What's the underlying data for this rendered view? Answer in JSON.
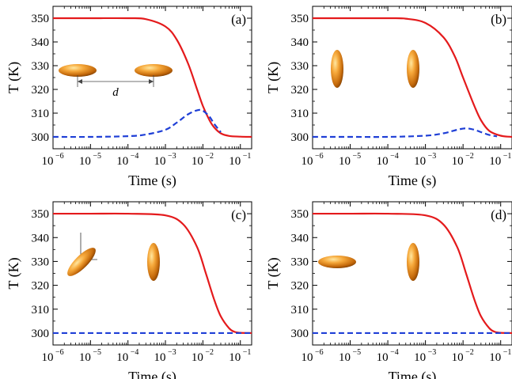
{
  "chart_data": [
    {
      "type": "line",
      "panel_label": "(a)",
      "xlabel": "Time (s)",
      "ylabel": "T (K)",
      "xscale": "log",
      "xlim": [
        1e-06,
        0.2
      ],
      "ylim": [
        295,
        355
      ],
      "xticks": [
        {
          "base": "10",
          "exp": "−6"
        },
        {
          "base": "10",
          "exp": "−5"
        },
        {
          "base": "10",
          "exp": "−4"
        },
        {
          "base": "10",
          "exp": "−3"
        },
        {
          "base": "10",
          "exp": "−2"
        },
        {
          "base": "10",
          "exp": "−1"
        }
      ],
      "yticks": [
        "300",
        "310",
        "320",
        "330",
        "340",
        "350"
      ],
      "series": [
        {
          "color": "#e41a1c",
          "style": "solid",
          "x": [
            1e-06,
            1e-05,
            0.0001,
            0.0003,
            0.001,
            0.002,
            0.004,
            0.007,
            0.01,
            0.015,
            0.02,
            0.03,
            0.05,
            0.1,
            0.2
          ],
          "y": [
            350,
            350,
            350,
            349.6,
            346.5,
            341,
            331,
            320,
            313,
            307,
            304,
            301.5,
            300.4,
            300.1,
            300
          ]
        },
        {
          "color": "#1f3fd6",
          "style": "dashed",
          "x": [
            1e-06,
            1e-05,
            0.0001,
            0.0003,
            0.001,
            0.002,
            0.004,
            0.007,
            0.01,
            0.015,
            0.02,
            0.03
          ],
          "y": [
            300,
            300,
            300.3,
            301,
            303,
            306,
            309.5,
            311.2,
            311,
            308.5,
            305.5,
            302
          ]
        }
      ],
      "annotation": "d",
      "particles": [
        "horizontal",
        "horizontal"
      ]
    },
    {
      "type": "line",
      "panel_label": "(b)",
      "xlabel": "Time (s)",
      "ylabel": "T (K)",
      "xscale": "log",
      "xlim": [
        1e-06,
        0.2
      ],
      "ylim": [
        295,
        355
      ],
      "xticks": [
        {
          "base": "10",
          "exp": "−6"
        },
        {
          "base": "10",
          "exp": "−5"
        },
        {
          "base": "10",
          "exp": "−4"
        },
        {
          "base": "10",
          "exp": "−3"
        },
        {
          "base": "10",
          "exp": "−2"
        },
        {
          "base": "10",
          "exp": "−1"
        }
      ],
      "yticks": [
        "300",
        "310",
        "320",
        "330",
        "340",
        "350"
      ],
      "series": [
        {
          "color": "#e41a1c",
          "style": "solid",
          "x": [
            1e-06,
            1e-05,
            0.0001,
            0.0003,
            0.001,
            0.003,
            0.006,
            0.01,
            0.02,
            0.03,
            0.05,
            0.1,
            0.2
          ],
          "y": [
            350,
            350,
            350,
            349.8,
            348,
            342,
            334,
            325,
            313,
            307,
            302.5,
            300.5,
            300
          ]
        },
        {
          "color": "#1f3fd6",
          "style": "dashed",
          "x": [
            1e-06,
            1e-05,
            0.0001,
            0.001,
            0.003,
            0.007,
            0.012,
            0.02,
            0.03,
            0.05,
            0.08
          ],
          "y": [
            300,
            300,
            300,
            300.5,
            301.5,
            303,
            303.6,
            303,
            302,
            300.8,
            300.2
          ]
        }
      ],
      "particles": [
        "vertical",
        "vertical"
      ]
    },
    {
      "type": "line",
      "panel_label": "(c)",
      "xlabel": "Time (s)",
      "ylabel": "T (K)",
      "xscale": "log",
      "xlim": [
        1e-06,
        0.2
      ],
      "ylim": [
        295,
        355
      ],
      "xticks": [
        {
          "base": "10",
          "exp": "−6"
        },
        {
          "base": "10",
          "exp": "−5"
        },
        {
          "base": "10",
          "exp": "−4"
        },
        {
          "base": "10",
          "exp": "−3"
        },
        {
          "base": "10",
          "exp": "−2"
        },
        {
          "base": "10",
          "exp": "−1"
        }
      ],
      "yticks": [
        "300",
        "310",
        "320",
        "330",
        "340",
        "350"
      ],
      "series": [
        {
          "color": "#e41a1c",
          "style": "solid",
          "x": [
            1e-06,
            1e-05,
            0.0001,
            0.001,
            0.003,
            0.007,
            0.012,
            0.02,
            0.03,
            0.05,
            0.07,
            0.1,
            0.2
          ],
          "y": [
            350,
            350,
            350,
            349.3,
            345.5,
            336,
            325,
            314,
            307,
            302,
            300.5,
            300.1,
            300
          ]
        },
        {
          "color": "#1f3fd6",
          "style": "dashed",
          "x": [
            1e-06,
            0.0001,
            0.001,
            0.01,
            0.1,
            0.2
          ],
          "y": [
            300,
            300,
            300,
            300,
            300,
            300
          ]
        }
      ],
      "particles": [
        "tilted",
        "vertical"
      ]
    },
    {
      "type": "line",
      "panel_label": "(d)",
      "xlabel": "Time (s)",
      "ylabel": "T (K)",
      "xscale": "log",
      "xlim": [
        1e-06,
        0.2
      ],
      "ylim": [
        295,
        355
      ],
      "xticks": [
        {
          "base": "10",
          "exp": "−6"
        },
        {
          "base": "10",
          "exp": "−5"
        },
        {
          "base": "10",
          "exp": "−4"
        },
        {
          "base": "10",
          "exp": "−3"
        },
        {
          "base": "10",
          "exp": "−2"
        },
        {
          "base": "10",
          "exp": "−1"
        }
      ],
      "yticks": [
        "300",
        "310",
        "320",
        "330",
        "340",
        "350"
      ],
      "series": [
        {
          "color": "#e41a1c",
          "style": "solid",
          "x": [
            1e-06,
            1e-05,
            0.0001,
            0.001,
            0.003,
            0.007,
            0.012,
            0.02,
            0.03,
            0.05,
            0.07,
            0.1,
            0.2
          ],
          "y": [
            350,
            350,
            350,
            349.3,
            345.5,
            336,
            325,
            314,
            307,
            302,
            300.5,
            300.1,
            300
          ]
        },
        {
          "color": "#1f3fd6",
          "style": "dashed",
          "x": [
            1e-06,
            0.0001,
            0.001,
            0.01,
            0.1,
            0.2
          ],
          "y": [
            300,
            300,
            300,
            300,
            300,
            300
          ]
        }
      ],
      "particles": [
        "horizontal",
        "vertical"
      ]
    }
  ]
}
